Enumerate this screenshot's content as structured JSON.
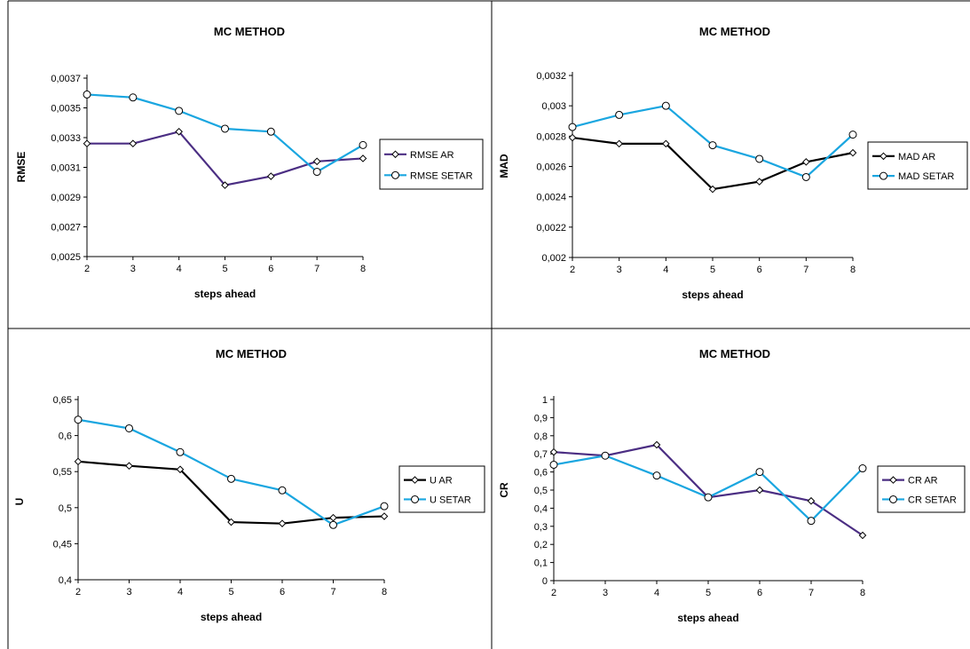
{
  "chart_data": [
    {
      "type": "line",
      "title": "MC METHOD",
      "xlabel": "steps ahead",
      "ylabel": "RMSE",
      "x": [
        2,
        3,
        4,
        5,
        6,
        7,
        8
      ],
      "ylim": [
        0.0025,
        0.0037
      ],
      "yticks": [
        0.0025,
        0.0027,
        0.0029,
        0.0031,
        0.0033,
        0.0035,
        0.0037
      ],
      "ytick_labels": [
        "0,0025",
        "0,0027",
        "0,0029",
        "0,0031",
        "0,0033",
        "0,0035",
        "0,0037"
      ],
      "legend": "right",
      "series": [
        {
          "name": "RMSE AR",
          "color": "#4b2e83",
          "marker": "diamond",
          "values": [
            0.00326,
            0.00326,
            0.00334,
            0.00298,
            0.00304,
            0.00314,
            0.00316
          ]
        },
        {
          "name": "RMSE SETAR",
          "color": "#1aa6e0",
          "marker": "circle",
          "values": [
            0.00359,
            0.00357,
            0.00348,
            0.00336,
            0.00334,
            0.00307,
            0.00325
          ]
        }
      ]
    },
    {
      "type": "line",
      "title": "MC METHOD",
      "xlabel": "steps ahead",
      "ylabel": "MAD",
      "x": [
        2,
        3,
        4,
        5,
        6,
        7,
        8
      ],
      "ylim": [
        0.002,
        0.0032
      ],
      "yticks": [
        0.002,
        0.0022,
        0.0024,
        0.0026,
        0.0028,
        0.003,
        0.0032
      ],
      "ytick_labels": [
        "0,002",
        "0,0022",
        "0,0024",
        "0,0026",
        "0,0028",
        "0,003",
        "0,0032"
      ],
      "legend": "right",
      "series": [
        {
          "name": "MAD AR",
          "color": "#000000",
          "marker": "diamond",
          "values": [
            0.00279,
            0.00275,
            0.00275,
            0.00245,
            0.0025,
            0.00263,
            0.00269
          ]
        },
        {
          "name": "MAD SETAR",
          "color": "#1aa6e0",
          "marker": "circle",
          "values": [
            0.00286,
            0.00294,
            0.003,
            0.00274,
            0.00265,
            0.00253,
            0.00281
          ]
        }
      ]
    },
    {
      "type": "line",
      "title": "MC METHOD",
      "xlabel": "steps ahead",
      "ylabel": "U",
      "x": [
        2,
        3,
        4,
        5,
        6,
        7,
        8
      ],
      "ylim": [
        0.4,
        0.65
      ],
      "yticks": [
        0.4,
        0.45,
        0.5,
        0.55,
        0.6,
        0.65
      ],
      "ytick_labels": [
        "0,4",
        "0,45",
        "0,5",
        "0,55",
        "0,6",
        "0,65"
      ],
      "legend": "right",
      "series": [
        {
          "name": "U AR",
          "color": "#000000",
          "marker": "diamond",
          "values": [
            0.564,
            0.558,
            0.553,
            0.48,
            0.478,
            0.486,
            0.488
          ]
        },
        {
          "name": "U SETAR",
          "color": "#1aa6e0",
          "marker": "circle",
          "values": [
            0.622,
            0.61,
            0.577,
            0.54,
            0.524,
            0.476,
            0.502
          ]
        }
      ]
    },
    {
      "type": "line",
      "title": "MC METHOD",
      "xlabel": "steps ahead",
      "ylabel": "CR",
      "x": [
        2,
        3,
        4,
        5,
        6,
        7,
        8
      ],
      "ylim": [
        0,
        1
      ],
      "yticks": [
        0,
        0.1,
        0.2,
        0.3,
        0.4,
        0.5,
        0.6,
        0.7,
        0.8,
        0.9,
        1
      ],
      "ytick_labels": [
        "0",
        "0,1",
        "0,2",
        "0,3",
        "0,4",
        "0,5",
        "0,6",
        "0,7",
        "0,8",
        "0,9",
        "1"
      ],
      "legend": "right",
      "series": [
        {
          "name": "CR AR",
          "color": "#4b2e83",
          "marker": "diamond",
          "values": [
            0.71,
            0.69,
            0.75,
            0.46,
            0.5,
            0.44,
            0.25
          ]
        },
        {
          "name": "CR SETAR",
          "color": "#1aa6e0",
          "marker": "circle",
          "values": [
            0.64,
            0.69,
            0.58,
            0.46,
            0.6,
            0.33,
            0.62
          ]
        }
      ]
    }
  ]
}
